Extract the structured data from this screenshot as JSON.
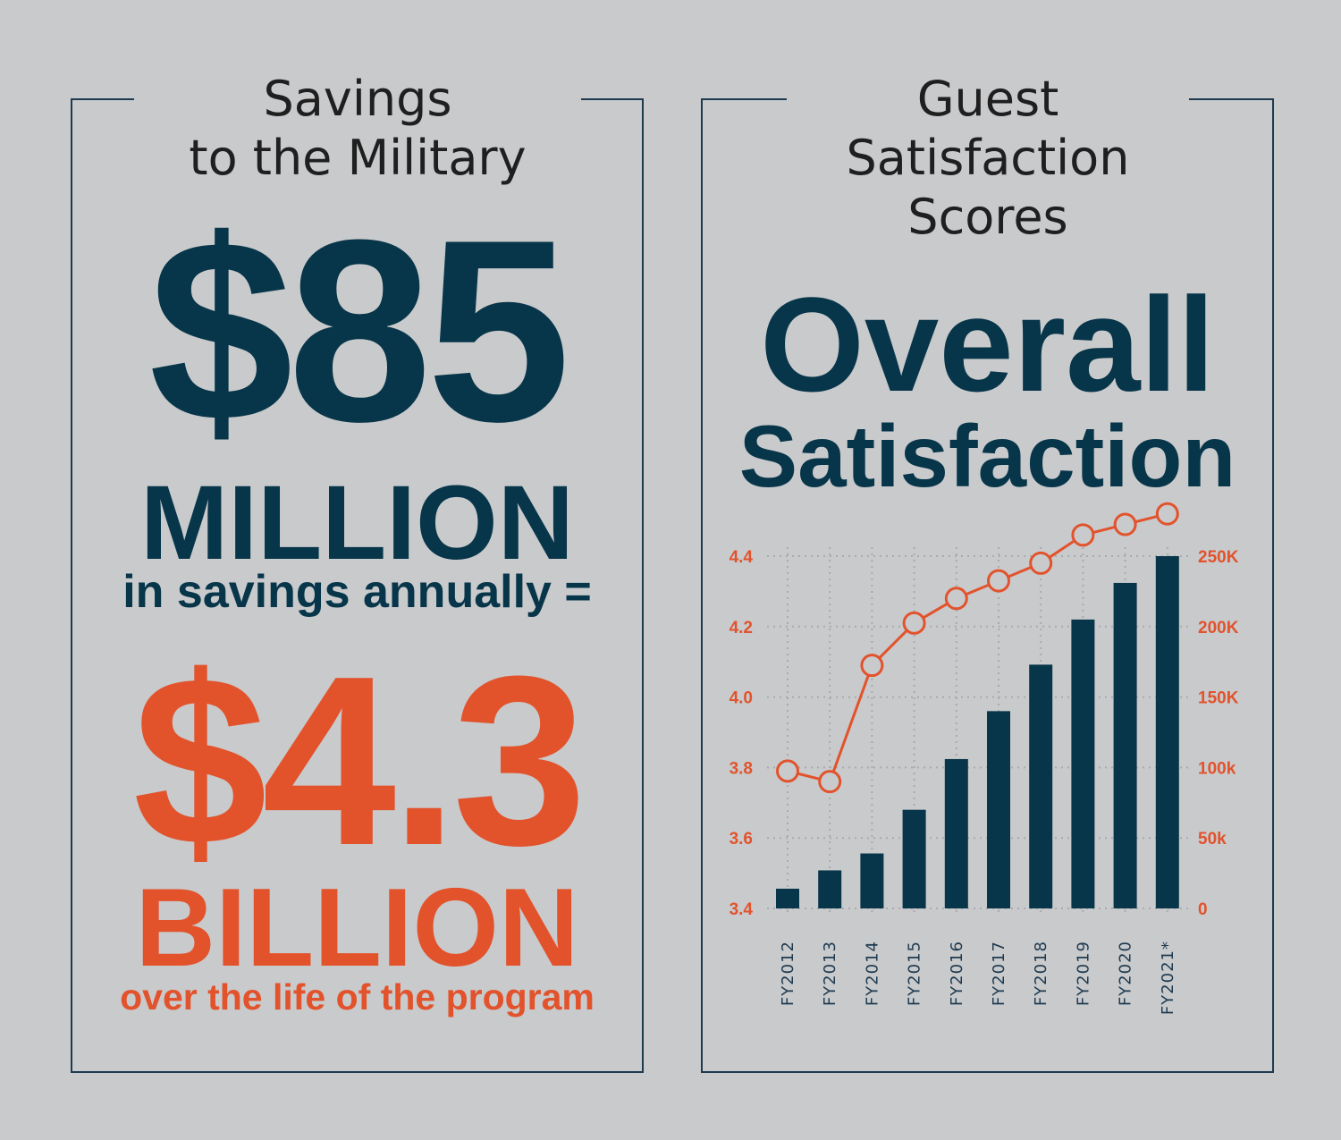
{
  "left_panel": {
    "heading_line1": "Savings",
    "heading_line2": "to the Military",
    "amount_annual": "$85",
    "amount_annual_unit": "MILLION",
    "annual_caption": "in savings annually =",
    "amount_total": "$4.3",
    "amount_total_unit": "BILLION",
    "total_caption": "over the life of the program"
  },
  "right_panel": {
    "heading_line1": "Guest",
    "heading_line2": "Satisfaction",
    "heading_line3": "Scores",
    "title_line1": "Overall",
    "title_line2": "Satisfaction"
  },
  "colors": {
    "navy": "#073549",
    "orange": "#e2532c",
    "background": "#c9cacc"
  },
  "chart_data": {
    "type": "bar",
    "categories": [
      "FY2012",
      "FY2013",
      "FY2014",
      "FY2015",
      "FY2016",
      "FY2017",
      "FY2018",
      "FY2019",
      "FY2020",
      "FY2021*"
    ],
    "series": [
      {
        "type": "bar",
        "axis": "right",
        "color": "#073549",
        "values": [
          14000,
          27000,
          39000,
          70000,
          106000,
          140000,
          173000,
          205000,
          231000,
          250000
        ]
      },
      {
        "type": "line",
        "axis": "left",
        "color": "#e2532c",
        "marker": "open-circle",
        "values": [
          3.79,
          3.76,
          4.09,
          4.21,
          4.28,
          4.33,
          4.38,
          4.46,
          4.49,
          4.52
        ]
      }
    ],
    "y_left": {
      "ticks": [
        "3.4",
        "3.6",
        "3.8",
        "4.0",
        "4.2",
        "4.4"
      ],
      "lim": [
        3.4,
        4.4
      ]
    },
    "y_right": {
      "ticks": [
        "0",
        "50k",
        "100k",
        "150K",
        "200K",
        "250K"
      ],
      "lim": [
        0,
        250000
      ]
    },
    "grid": true,
    "xlabel": "",
    "ylabel": ""
  }
}
